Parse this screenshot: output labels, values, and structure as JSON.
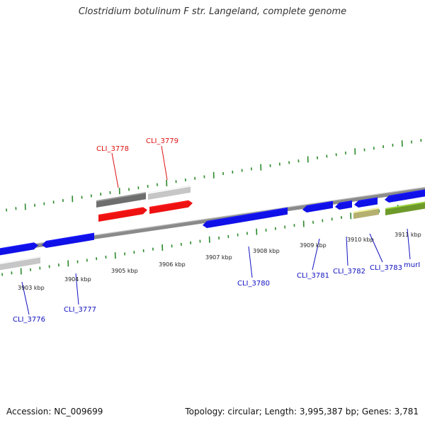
{
  "title": "Clostridium botulinum F str. Langeland, complete genome",
  "footer": {
    "accession": "Accession: NC_009699",
    "stats": "Topology: circular; Length: 3,995,387 bp; Genes: 3,781"
  },
  "colors": {
    "blue_gene": "#1010e8",
    "red_gene": "#ee1111",
    "dark_gray_gene": "#6e6e6e",
    "light_gray_gene": "#c6c6c6",
    "olive_gene": "#b5b070",
    "green_gene": "#6e9a2a",
    "backbone": "#8a8a8a",
    "ticks": "#2a8a2a",
    "label_blue": "#1010c0",
    "label_red": "#dd1111"
  },
  "scale_labels": [
    "3903 kbp",
    "3904 kbp",
    "3905 kbp",
    "3906 kbp",
    "3907 kbp",
    "3908 kbp",
    "3909 kbp",
    "3910 kbp",
    "3911 kbp"
  ],
  "gene_labels": [
    "CLI_3776",
    "CLI_3777",
    "CLI_3778",
    "CLI_3779",
    "CLI_3780",
    "CLI_3781",
    "CLI_3782",
    "CLI_3783",
    "murI"
  ]
}
